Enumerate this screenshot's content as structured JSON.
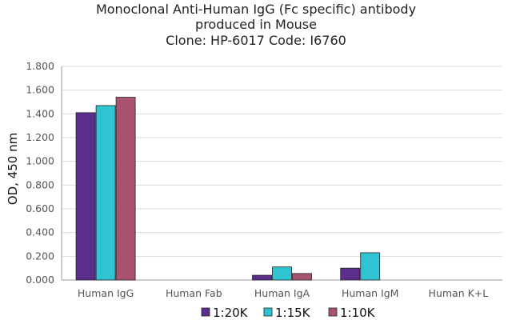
{
  "chart_data": {
    "type": "bar",
    "title_lines": [
      "Monoclonal Anti-Human IgG (Fc specific) antibody",
      "produced in Mouse",
      "Clone: HP-6017  Code: I6760"
    ],
    "xlabel": "",
    "ylabel": "OD, 450 nm",
    "ylim": [
      0,
      1.8
    ],
    "yticks": [
      "0.000",
      "0.200",
      "0.400",
      "0.600",
      "0.800",
      "1.000",
      "1.200",
      "1.400",
      "1.600",
      "1.800"
    ],
    "ytick_values": [
      0,
      0.2,
      0.4,
      0.6,
      0.8,
      1.0,
      1.2,
      1.4,
      1.6,
      1.8
    ],
    "categories": [
      "Human IgG",
      "Human Fab",
      "Human IgA",
      "Human IgM",
      "Human K+L"
    ],
    "series": [
      {
        "name": "1:20K",
        "color": "#5b2d8c",
        "values": [
          1.41,
          0,
          0.04,
          0.1,
          0
        ]
      },
      {
        "name": "1:15K",
        "color": "#2ec4d2",
        "values": [
          1.47,
          0,
          0.11,
          0.23,
          0
        ]
      },
      {
        "name": "1:10K",
        "color": "#a8546e",
        "values": [
          1.54,
          0,
          0.055,
          0,
          0
        ]
      }
    ],
    "grid": true,
    "legend_position": "bottom"
  }
}
